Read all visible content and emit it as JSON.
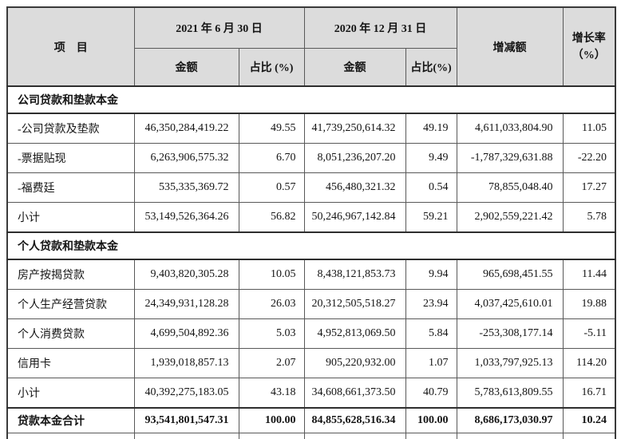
{
  "table": {
    "header": {
      "item_label": "项　目",
      "date_2021": "2021 年 6 月 30 日",
      "date_2020": "2020 年 12 月 31 日",
      "amount_2021": "金额",
      "pct_2021": "占比 (%)",
      "amount_2020": "金额",
      "pct_2020": "占比(%)",
      "change_label": "增减额",
      "growth_label": "增长率\n（%）"
    },
    "rows": [
      {
        "type": "section",
        "label": "公司贷款和垫款本金"
      },
      {
        "type": "data",
        "label": "-公司贷款及垫款",
        "amount_2021": "46,350,284,419.22",
        "pct_2021": "49.55",
        "amount_2020": "41,739,250,614.32",
        "pct_2020": "49.19",
        "change": "4,611,033,804.90",
        "growth": "11.05"
      },
      {
        "type": "data",
        "label": "-票据贴现",
        "amount_2021": "6,263,906,575.32",
        "pct_2021": "6.70",
        "amount_2020": "8,051,236,207.20",
        "pct_2020": "9.49",
        "change": "-1,787,329,631.88",
        "growth": "-22.20"
      },
      {
        "type": "data",
        "label": "-福费廷",
        "amount_2021": "535,335,369.72",
        "pct_2021": "0.57",
        "amount_2020": "456,480,321.32",
        "pct_2020": "0.54",
        "change": "78,855,048.40",
        "growth": "17.27"
      },
      {
        "type": "data",
        "label": "小计",
        "amount_2021": "53,149,526,364.26",
        "pct_2021": "56.82",
        "amount_2020": "50,246,967,142.84",
        "pct_2020": "59.21",
        "change": "2,902,559,221.42",
        "growth": "5.78"
      },
      {
        "type": "section",
        "label": "个人贷款和垫款本金"
      },
      {
        "type": "data",
        "label": "房产按揭贷款",
        "amount_2021": "9,403,820,305.28",
        "pct_2021": "10.05",
        "amount_2020": "8,438,121,853.73",
        "pct_2020": "9.94",
        "change": "965,698,451.55",
        "growth": "11.44"
      },
      {
        "type": "data",
        "label": "个人生产经营贷款",
        "amount_2021": "24,349,931,128.28",
        "pct_2021": "26.03",
        "amount_2020": "20,312,505,518.27",
        "pct_2020": "23.94",
        "change": "4,037,425,610.01",
        "growth": "19.88"
      },
      {
        "type": "data",
        "label": "个人消费贷款",
        "amount_2021": "4,699,504,892.36",
        "pct_2021": "5.03",
        "amount_2020": "4,952,813,069.50",
        "pct_2020": "5.84",
        "change": "-253,308,177.14",
        "growth": "-5.11"
      },
      {
        "type": "data",
        "label": "信用卡",
        "amount_2021": "1,939,018,857.13",
        "pct_2021": "2.07",
        "amount_2020": "905,220,932.00",
        "pct_2020": "1.07",
        "change": "1,033,797,925.13",
        "growth": "114.20"
      },
      {
        "type": "data",
        "label": "小计",
        "amount_2021": "40,392,275,183.05",
        "pct_2021": "43.18",
        "amount_2020": "34,608,661,373.50",
        "pct_2020": "40.79",
        "change": "5,783,613,809.55",
        "growth": "16.71"
      },
      {
        "type": "total",
        "label": "贷款本金合计",
        "amount_2021": "93,541,801,547.31",
        "pct_2021": "100.00",
        "amount_2020": "84,855,628,516.34",
        "pct_2020": "100.00",
        "change": "8,686,173,030.97",
        "growth": "10.24"
      }
    ]
  },
  "colors": {
    "header_bg": "#dcdcdc",
    "border": "#595959",
    "thick_border": "#2e2e2e",
    "text": "#141414",
    "body_bg": "#ffffff"
  }
}
